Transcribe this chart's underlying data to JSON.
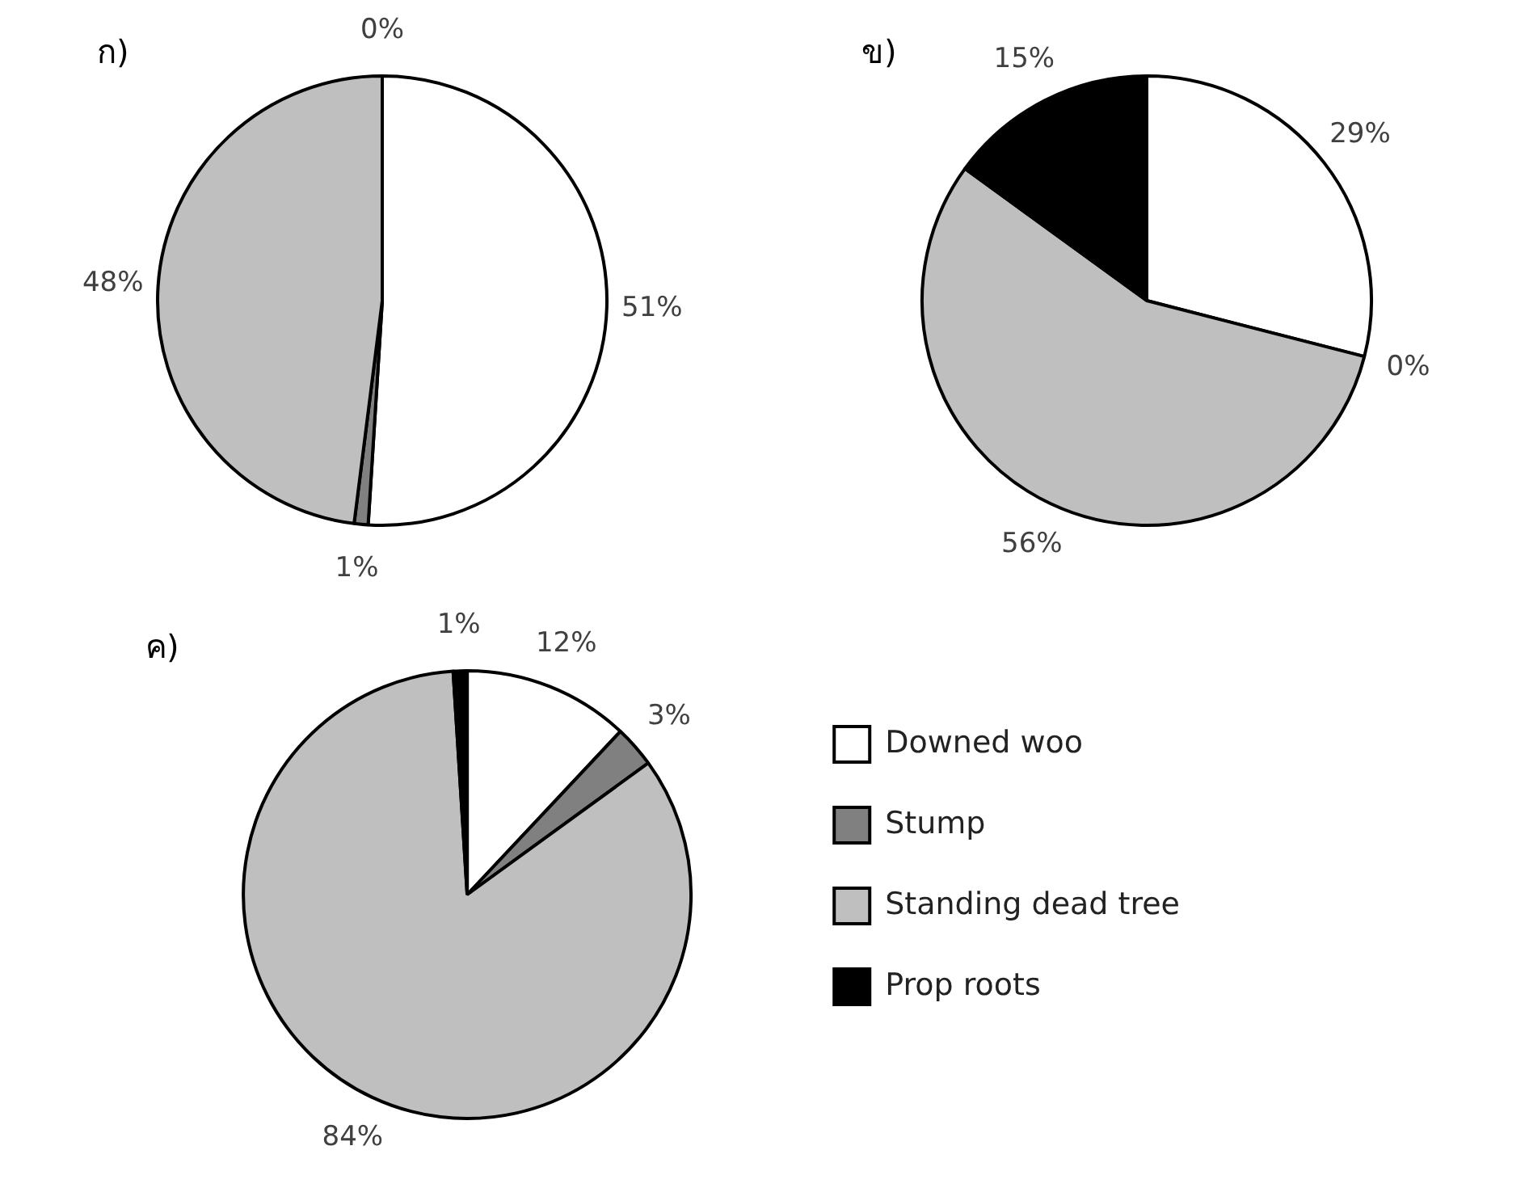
{
  "chart_data": [
    {
      "type": "pie",
      "title": "ก)",
      "categories": [
        null,
        null,
        null,
        null
      ],
      "values": [
        51,
        1,
        48,
        0
      ],
      "value_labels": [
        "51%",
        "1%",
        "48%",
        "0%"
      ],
      "colors": [
        "#ffffff",
        "#808080",
        "#bfbfbf",
        "#000000"
      ],
      "legend": false
    },
    {
      "type": "pie",
      "title": "ข)",
      "categories": [
        null,
        null,
        null,
        null
      ],
      "values": [
        29,
        0,
        56,
        15
      ],
      "value_labels": [
        "29%",
        "0%",
        "56%",
        "15%"
      ],
      "colors": [
        "#ffffff",
        "#808080",
        "#bfbfbf",
        "#000000"
      ],
      "legend": false
    },
    {
      "type": "pie",
      "title": "ค)",
      "categories": [
        "Downed woo",
        "Stump",
        "Standing dead tree",
        "Prop roots"
      ],
      "values": [
        12,
        3,
        84,
        1
      ],
      "value_labels": [
        "12%",
        "3%",
        "84%",
        "1%"
      ],
      "colors": [
        "#ffffff",
        "#808080",
        "#bfbfbf",
        "#000000"
      ],
      "legend": "right"
    }
  ]
}
